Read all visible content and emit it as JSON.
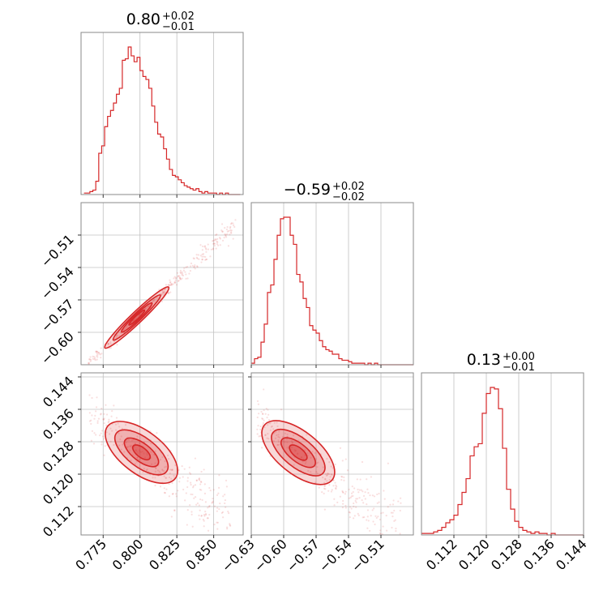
{
  "chart_data": [
    {
      "type": "histogram",
      "panel": "hist-param1",
      "title_value": "0.80",
      "title_plus": "+0.02",
      "title_minus": "−0.01",
      "xlim": [
        0.76,
        0.87
      ],
      "x_ticks": [
        0.775,
        0.8,
        0.825,
        0.85
      ],
      "x_tick_labels": [
        "0.775",
        "0.800",
        "0.825",
        "0.850"
      ],
      "color": "#d62728",
      "grid": true,
      "bin_edges_start": 0.762,
      "bin_width": 0.002,
      "counts": [
        1,
        1,
        2,
        3,
        9,
        28,
        33,
        46,
        53,
        57,
        62,
        68,
        72,
        91,
        92,
        100,
        94,
        90,
        93,
        84,
        80,
        78,
        72,
        60,
        49,
        41,
        39,
        31,
        24,
        17,
        13,
        12,
        10,
        8,
        6,
        5,
        4,
        3,
        4,
        2,
        1,
        2,
        1,
        1,
        1,
        0,
        1,
        0,
        1,
        0,
        0,
        0,
        0
      ]
    },
    {
      "type": "histogram",
      "panel": "hist-param2",
      "title_value": "−0.59",
      "title_plus": "+0.02",
      "title_minus": "−0.02",
      "xlim": [
        -0.63,
        -0.48
      ],
      "x_ticks": [
        -0.63,
        -0.6,
        -0.57,
        -0.54,
        -0.51
      ],
      "x_tick_labels": [
        "−0.63",
        "−0.60",
        "−0.57",
        "−0.54",
        "−0.51"
      ],
      "color": "#d62728",
      "grid": true,
      "bin_edges_start": -0.63,
      "bin_width": 0.003,
      "counts": [
        1,
        4,
        5,
        15,
        27,
        48,
        53,
        70,
        86,
        97,
        98,
        98,
        86,
        80,
        60,
        55,
        44,
        38,
        26,
        23,
        21,
        16,
        12,
        10,
        9,
        7,
        7,
        4,
        3,
        3,
        2,
        1,
        1,
        1,
        1,
        0,
        1,
        0,
        1,
        0,
        0,
        0,
        0,
        0,
        0,
        0,
        0,
        0,
        0,
        0
      ]
    },
    {
      "type": "histogram",
      "panel": "hist-param3",
      "title_value": "0.13",
      "title_plus": "+0.00",
      "title_minus": "−0.01",
      "xlim": [
        0.104,
        0.144
      ],
      "x_ticks": [
        0.112,
        0.12,
        0.128,
        0.136,
        0.144
      ],
      "x_tick_labels": [
        "0.112",
        "0.120",
        "0.128",
        "0.136",
        "0.144"
      ],
      "color": "#d62728",
      "grid": true,
      "bin_edges_start": 0.104,
      "bin_width": 0.001,
      "counts": [
        1,
        1,
        1,
        2,
        3,
        5,
        8,
        10,
        13,
        20,
        28,
        37,
        52,
        58,
        60,
        80,
        93,
        97,
        96,
        83,
        57,
        30,
        17,
        9,
        5,
        3,
        2,
        1,
        2,
        1,
        1,
        0,
        1,
        0,
        0,
        0,
        0,
        0,
        0,
        0
      ]
    },
    {
      "type": "contour",
      "panel": "contour-p1-p2",
      "xlim": [
        0.76,
        0.87
      ],
      "ylim": [
        -0.63,
        -0.48
      ],
      "y_ticks": [
        -0.6,
        -0.57,
        -0.54,
        -0.51
      ],
      "y_tick_labels": [
        "−0.60",
        "−0.57",
        "−0.54",
        "−0.51"
      ],
      "x_tick_labels_shown": false,
      "center": [
        0.795,
        -0.59
      ],
      "slope": 1.3,
      "width": 0.002,
      "scatter_extent": [
        0.765,
        0.865
      ],
      "color": "#d62728",
      "grid": true
    },
    {
      "type": "contour",
      "panel": "contour-p1-p3",
      "xlim": [
        0.76,
        0.87
      ],
      "ylim": [
        0.105,
        0.145
      ],
      "x_ticks": [
        0.775,
        0.8,
        0.825,
        0.85
      ],
      "x_tick_labels": [
        "0.775",
        "0.800",
        "0.825",
        "0.850"
      ],
      "y_ticks": [
        0.112,
        0.12,
        0.128,
        0.136,
        0.144
      ],
      "y_tick_labels": [
        "0.112",
        "0.120",
        "0.128",
        "0.136",
        "0.144"
      ],
      "center": [
        0.797,
        0.1265
      ],
      "slope": -0.28,
      "width": 0.0022,
      "scatter_extent": [
        0.765,
        0.862
      ],
      "color": "#d62728",
      "grid": true
    },
    {
      "type": "contour",
      "panel": "contour-p2-p3",
      "xlim": [
        -0.63,
        -0.48
      ],
      "ylim": [
        0.105,
        0.145
      ],
      "x_ticks": [
        -0.63,
        -0.6,
        -0.57,
        -0.54,
        -0.51
      ],
      "x_tick_labels": [
        "−0.63",
        "−0.60",
        "−0.57",
        "−0.54",
        "−0.51"
      ],
      "y_tick_labels_shown": false,
      "center": [
        -0.592,
        0.1265
      ],
      "slope": -0.215,
      "width": 0.0022,
      "scatter_extent": [
        -0.625,
        -0.49
      ],
      "color": "#d62728",
      "grid": true
    }
  ]
}
